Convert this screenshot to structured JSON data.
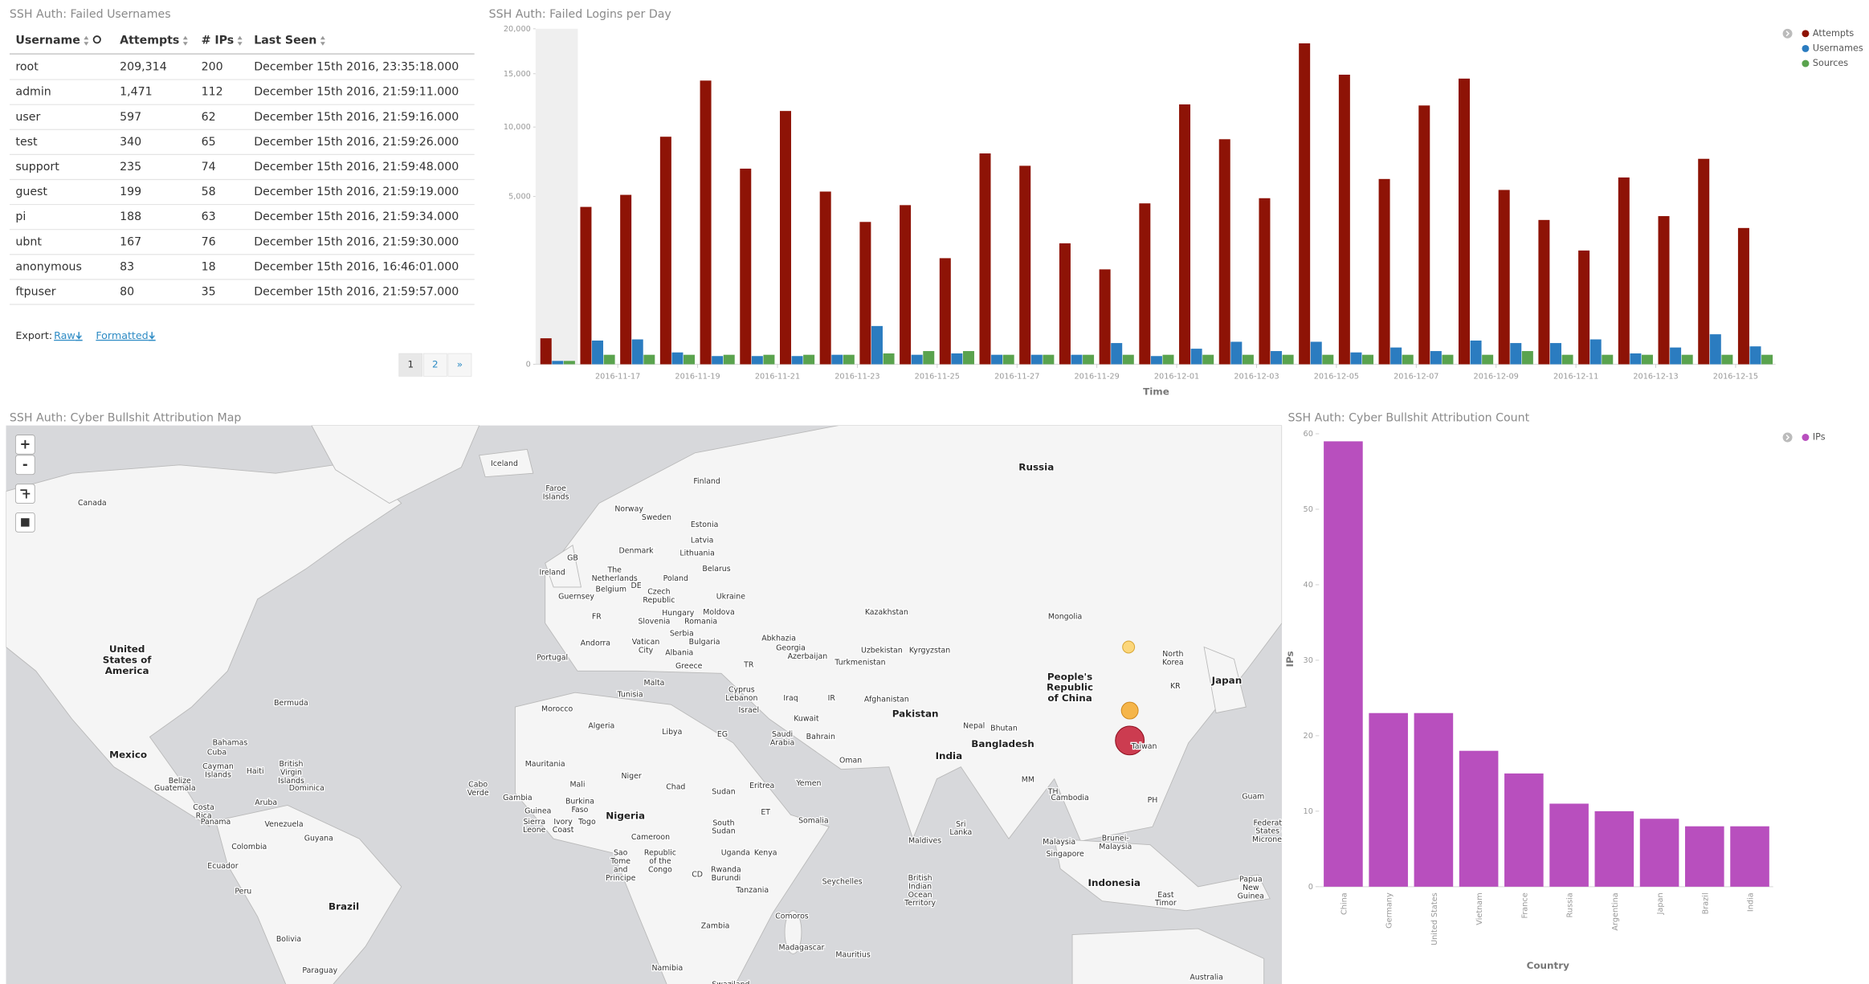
{
  "table": {
    "title": "SSH Auth: Failed Usernames",
    "headers": [
      "Username",
      "Attempts",
      "# IPs",
      "Last Seen"
    ],
    "rows": [
      [
        "root",
        "209,314",
        "200",
        "December 15th 2016, 23:35:18.000"
      ],
      [
        "admin",
        "1,471",
        "112",
        "December 15th 2016, 21:59:11.000"
      ],
      [
        "user",
        "597",
        "62",
        "December 15th 2016, 21:59:16.000"
      ],
      [
        "test",
        "340",
        "65",
        "December 15th 2016, 21:59:26.000"
      ],
      [
        "support",
        "235",
        "74",
        "December 15th 2016, 21:59:48.000"
      ],
      [
        "guest",
        "199",
        "58",
        "December 15th 2016, 21:59:19.000"
      ],
      [
        "pi",
        "188",
        "63",
        "December 15th 2016, 21:59:34.000"
      ],
      [
        "ubnt",
        "167",
        "76",
        "December 15th 2016, 21:59:30.000"
      ],
      [
        "anonymous",
        "83",
        "18",
        "December 15th 2016, 16:46:01.000"
      ],
      [
        "ftpuser",
        "80",
        "35",
        "December 15th 2016, 21:59:57.000"
      ]
    ],
    "export_label": "Export:",
    "export_links": [
      "Raw",
      "Formatted"
    ],
    "pages": [
      "1",
      "2",
      "»"
    ]
  },
  "chart_data": [
    {
      "type": "bar",
      "title": "SSH Auth: Failed Logins per Day",
      "x_label": "Time",
      "categories": [
        null,
        null,
        "2016-11-17",
        null,
        "2016-11-19",
        null,
        "2016-11-21",
        null,
        "2016-11-23",
        null,
        "2016-11-25",
        null,
        "2016-11-27",
        null,
        "2016-11-29",
        null,
        "2016-12-01",
        null,
        "2016-12-03",
        null,
        "2016-12-05",
        null,
        "2016-12-07",
        null,
        "2016-12-09",
        null,
        "2016-12-11",
        null,
        "2016-12-13",
        null,
        "2016-12-15"
      ],
      "series": [
        {
          "name": "Attempts",
          "color": "#8e1306",
          "values": [
            120,
            4400,
            5100,
            9200,
            14300,
            6800,
            11400,
            5300,
            3600,
            4500,
            2000,
            7900,
            7000,
            2600,
            1600,
            4600,
            12000,
            9000,
            4900,
            18300,
            14900,
            6100,
            11900,
            14500,
            5400,
            3700,
            2300,
            6200,
            3900,
            7500,
            3300
          ]
        },
        {
          "name": "Usernames",
          "color": "#2b7cc0",
          "values": [
            2,
            100,
            110,
            25,
            12,
            12,
            12,
            16,
            260,
            16,
            21,
            16,
            16,
            16,
            80,
            12,
            43,
            90,
            31,
            90,
            25,
            50,
            31,
            100,
            80,
            80,
            110,
            21,
            50,
            160,
            57
          ]
        },
        {
          "name": "Sources",
          "color": "#5aa34e",
          "values": [
            2,
            16,
            16,
            16,
            16,
            16,
            16,
            16,
            21,
            31,
            31,
            16,
            16,
            16,
            16,
            16,
            16,
            16,
            16,
            16,
            16,
            16,
            16,
            16,
            31,
            16,
            16,
            16,
            16,
            16,
            16
          ]
        }
      ],
      "ylim": [
        0,
        20000
      ],
      "yticks": [
        0,
        {
          "value": 5000,
          "label": "5,000"
        },
        {
          "value": 10000,
          "label": "10,000"
        },
        {
          "value": 15000,
          "label": "15,000"
        },
        {
          "value": 20000,
          "label": "20,000"
        }
      ],
      "scale": "sqrt",
      "legend": "top-right"
    },
    {
      "type": "bar",
      "title": "SSH Auth: Cyber Bullshit Attribution Count",
      "x_label": "Country",
      "y_label": "IPs",
      "categories": [
        "China",
        "Germany",
        "United States",
        "Vietnam",
        "France",
        "Russia",
        "Argentina",
        "Japan",
        "Brazil",
        "India"
      ],
      "series": [
        {
          "name": "IPs",
          "color": "#b84fbe",
          "values": [
            59,
            23,
            23,
            18,
            15,
            11,
            10,
            9,
            8,
            8
          ]
        }
      ],
      "ylim": [
        0,
        60
      ],
      "yticks": [
        0,
        10,
        20,
        30,
        40,
        50,
        60
      ],
      "scale": "linear",
      "legend": "top-right"
    }
  ],
  "map": {
    "title": "SSH Auth: Cyber Bullshit Attribution Map",
    "controls": [
      "+",
      "-"
    ],
    "labels": [
      [
        "Iceland"
      ],
      [
        "Canada"
      ],
      [
        "Russia"
      ],
      [
        "Finland"
      ],
      [
        "Faroe",
        "Islands"
      ],
      [
        "Norway"
      ],
      [
        "Sweden"
      ],
      [
        "Estonia"
      ],
      [
        "Latvia"
      ],
      [
        "Lithuania"
      ],
      [
        "Denmark"
      ],
      [
        "GB"
      ],
      [
        "Ireland"
      ],
      [
        "The",
        "Netherlands"
      ],
      [
        "Belgium"
      ],
      [
        "DE"
      ],
      [
        "Poland"
      ],
      [
        "Belarus"
      ],
      [
        "Czech",
        "Republic"
      ],
      [
        "Ukraine"
      ],
      [
        "Guernsey"
      ],
      [
        "FR"
      ],
      [
        "Hungary"
      ],
      [
        "Moldova"
      ],
      [
        "Slovenia"
      ],
      [
        "Romania"
      ],
      [
        "Serbia"
      ],
      [
        "Bulgaria"
      ],
      [
        "Andorra"
      ],
      [
        "Vatican",
        "City"
      ],
      [
        "Albania"
      ],
      [
        "Greece"
      ],
      [
        "Portugal"
      ],
      [
        "Kazakhstan"
      ],
      [
        "Mongolia"
      ],
      [
        "Uzbekistan"
      ],
      [
        "Kyrgyzstan"
      ],
      [
        "Abkhazia"
      ],
      [
        "Georgia"
      ],
      [
        "Azerbaijan"
      ],
      [
        "Turkmenistan"
      ],
      [
        "TR"
      ],
      [
        "Malta"
      ],
      [
        "Tunisia"
      ],
      [
        "Cyprus",
        "Lebanon"
      ],
      [
        "Iraq"
      ],
      [
        "IR"
      ],
      [
        "Afghanistan"
      ],
      [
        "Pakistan"
      ],
      [
        "Israel"
      ],
      [
        "Kuwait"
      ],
      [
        "Morocco"
      ],
      [
        "Algeria"
      ],
      [
        "Libya"
      ],
      [
        "EG"
      ],
      [
        "Saudi",
        "Arabia"
      ],
      [
        "Bahrain"
      ],
      [
        "Oman"
      ],
      [
        "Nepal"
      ],
      [
        "Bhutan"
      ],
      [
        "India"
      ],
      [
        "Bangladesh"
      ],
      [
        "People's",
        "Republic",
        "of China"
      ],
      [
        "North",
        "Korea"
      ],
      [
        "KR"
      ],
      [
        "Japan"
      ],
      [
        "Taiwan"
      ],
      [
        "United",
        "States of",
        "America"
      ],
      [
        "Bermuda"
      ],
      [
        "Mexico"
      ],
      [
        "Bahamas"
      ],
      [
        "Cuba"
      ],
      [
        "Cayman",
        "Islands"
      ],
      [
        "Haiti"
      ],
      [
        "British",
        "Virgin",
        "Islands"
      ],
      [
        "Dominica"
      ],
      [
        "Belize"
      ],
      [
        "Guatemala"
      ],
      [
        "Costa",
        "Rica"
      ],
      [
        "Panama"
      ],
      [
        "Aruba"
      ],
      [
        "Venezuela"
      ],
      [
        "Guyana"
      ],
      [
        "Colombia"
      ],
      [
        "Ecuador"
      ],
      [
        "Peru"
      ],
      [
        "Brazil"
      ],
      [
        "Bolivia"
      ],
      [
        "Paraguay"
      ],
      [
        "Cabo",
        "Verde"
      ],
      [
        "Mauritania"
      ],
      [
        "Mali"
      ],
      [
        "Niger"
      ],
      [
        "Chad"
      ],
      [
        "Sudan"
      ],
      [
        "Eritrea"
      ],
      [
        "Yemen"
      ],
      [
        "Somalia"
      ],
      [
        "ET"
      ],
      [
        "Gambia"
      ],
      [
        "Guinea"
      ],
      [
        "Sierra",
        "Leone"
      ],
      [
        "Burkina",
        "Faso"
      ],
      [
        "Ivory",
        "Coast"
      ],
      [
        "Togo"
      ],
      [
        "Nigeria"
      ],
      [
        "Cameroon"
      ],
      [
        "South",
        "Sudan"
      ],
      [
        "Uganda"
      ],
      [
        "Kenya"
      ],
      [
        "Sao",
        "Tome",
        "and",
        "Principe"
      ],
      [
        "Republic",
        "of the",
        "Congo"
      ],
      [
        "CD"
      ],
      [
        "Rwanda",
        "Burundi"
      ],
      [
        "Tanzania"
      ],
      [
        "Zambia"
      ],
      [
        "Namibia"
      ],
      [
        "Swaziland"
      ],
      [
        "Madagascar"
      ],
      [
        "Mauritius"
      ],
      [
        "Comoros"
      ],
      [
        "Seychelles"
      ],
      [
        "British",
        "Indian",
        "Ocean",
        "Territory"
      ],
      [
        "Maldives"
      ],
      [
        "Sri",
        "Lanka"
      ],
      [
        "MM"
      ],
      [
        "TH"
      ],
      [
        "Cambodia"
      ],
      [
        "Malaysia"
      ],
      [
        "Singapore"
      ],
      [
        "Brunei-",
        "Malaysia"
      ],
      [
        "Indonesia"
      ],
      [
        "PH"
      ],
      [
        "Guam"
      ],
      [
        "East",
        "Timor"
      ],
      [
        "Papua",
        "New",
        "Guinea"
      ],
      [
        "Federated",
        "States of",
        "Micronesia"
      ],
      [
        "Australia"
      ]
    ]
  }
}
